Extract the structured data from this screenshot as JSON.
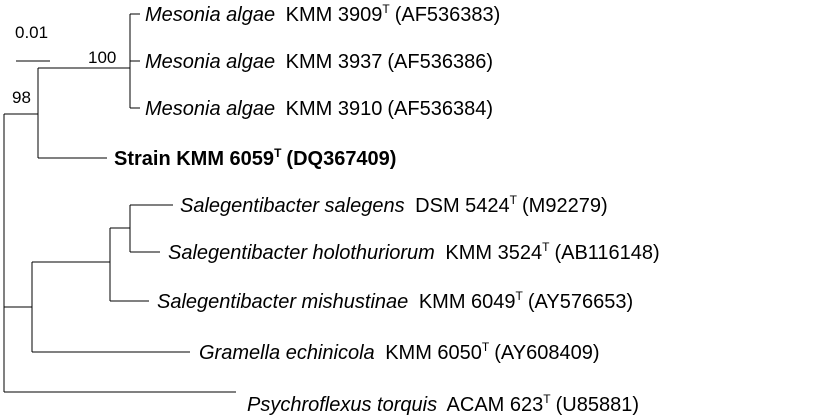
{
  "tree": {
    "scale_bar": {
      "label": "0.01"
    },
    "bootstrap_values": {
      "mesonia_clade": "100",
      "mesonia_strain_clade": "98"
    },
    "taxa": [
      {
        "genus_species": "Mesonia algae",
        "strain": "KMM 3909",
        "type_strain": true,
        "accession": "(AF536383)"
      },
      {
        "genus_species": "Mesonia algae",
        "strain": "KMM 3937",
        "type_strain": false,
        "accession": "(AF536386)"
      },
      {
        "genus_species": "Mesonia algae",
        "strain": "KMM 3910",
        "type_strain": false,
        "accession": "(AF536384)"
      },
      {
        "genus_species": "",
        "strain": "Strain KMM 6059",
        "type_strain": true,
        "accession": "(DQ367409)",
        "bold": true
      },
      {
        "genus_species": "Salegentibacter salegens",
        "strain": "DSM 5424",
        "type_strain": true,
        "accession": "(M92279)"
      },
      {
        "genus_species": "Salegentibacter holothuriorum",
        "strain": "KMM 3524",
        "type_strain": true,
        "accession": "(AB116148)"
      },
      {
        "genus_species": "Salegentibacter mishustinae",
        "strain": "KMM 6049",
        "type_strain": true,
        "accession": "(AY576653)"
      },
      {
        "genus_species": "Gramella echinicola",
        "strain": "KMM 6050",
        "type_strain": true,
        "accession": "(AY608409)"
      },
      {
        "genus_species": "Psychroflexus torquis",
        "strain": "ACAM 623",
        "type_strain": true,
        "accession": "(U85881)"
      }
    ],
    "type_strain_marker": "T"
  }
}
